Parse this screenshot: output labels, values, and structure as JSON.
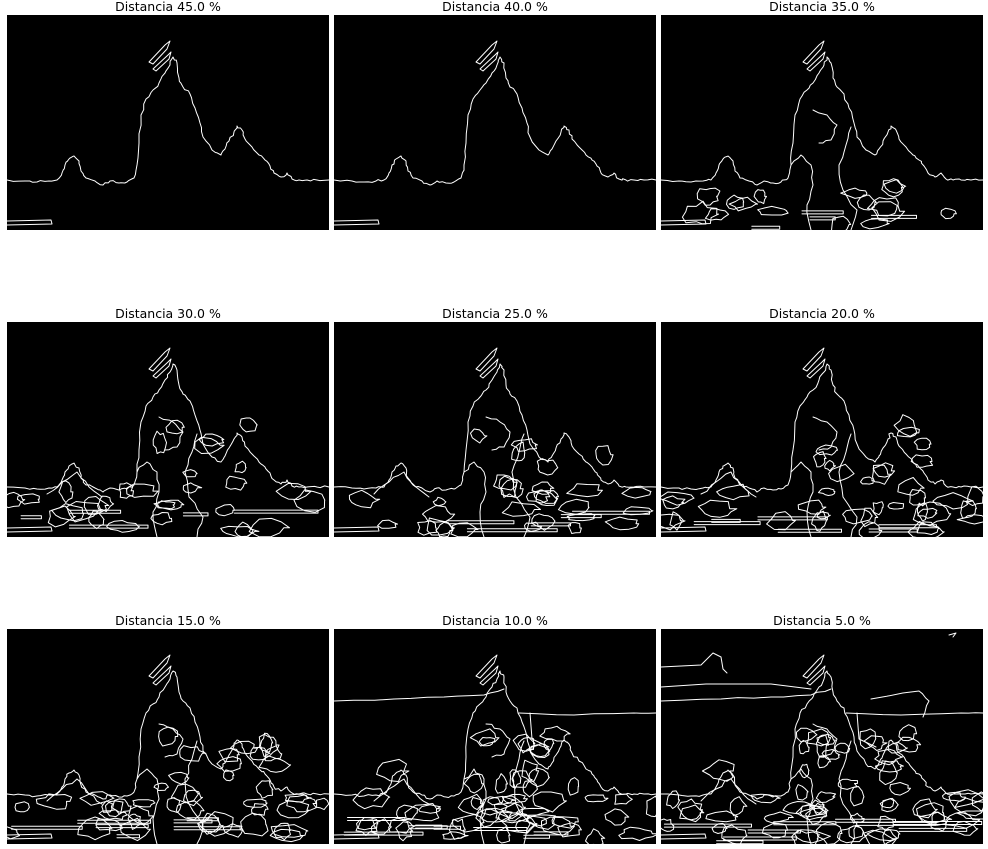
{
  "figure": {
    "panels": [
      {
        "title": "Distancia 45.0 %",
        "detail": 0
      },
      {
        "title": "Distancia 40.0 %",
        "detail": 0
      },
      {
        "title": "Distancia 35.0 %",
        "detail": 2
      },
      {
        "title": "Distancia 30.0 %",
        "detail": 3
      },
      {
        "title": "Distancia 25.0 %",
        "detail": 3
      },
      {
        "title": "Distancia 20.0 %",
        "detail": 4
      },
      {
        "title": "Distancia 15.0 %",
        "detail": 5
      },
      {
        "title": "Distancia 10.0 %",
        "detail": 6
      },
      {
        "title": "Distancia 5.0 %",
        "detail": 7
      }
    ],
    "background_color": "#000000",
    "edge_color": "#ffffff"
  }
}
